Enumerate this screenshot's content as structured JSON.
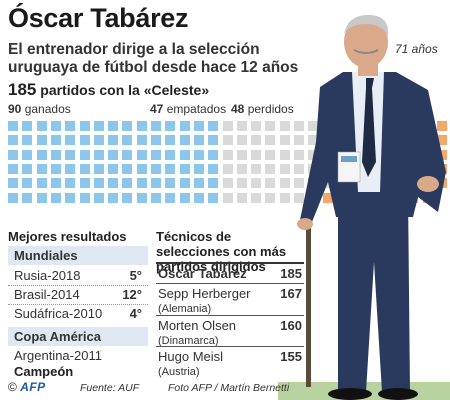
{
  "title": "Óscar Tabárez",
  "subtitle": "El entrenador dirige a la selección uruguaya de fútbol desde hace 12 años",
  "age": "71 años",
  "games": {
    "number": "185",
    "text": " partidos con la «Celeste»"
  },
  "waffle": {
    "won": {
      "count": 90,
      "number": "90",
      "label": " ganados",
      "color": "#8cc6ea"
    },
    "drawn": {
      "count": 47,
      "number": "47",
      "label": " empatados",
      "color": "#d9d9d9"
    },
    "lost": {
      "count": 48,
      "number": "48",
      "label": " perdidos",
      "color": "#f4a66b"
    }
  },
  "best": {
    "heading": "Mejores resultados",
    "mundiales": {
      "heading": "Mundiales",
      "rows": [
        {
          "competition": "Rusia-2018",
          "place": "5°"
        },
        {
          "competition": "Brasil-2014",
          "place": "12°"
        },
        {
          "competition": "Sudáfrica-2010",
          "place": "4°"
        }
      ]
    },
    "copa": {
      "heading": "Copa América",
      "competition": "Argentina-2011",
      "result": "Campeón"
    }
  },
  "coaches": {
    "heading": "Técnicos de selecciones con más partidos dirigidos",
    "rows": [
      {
        "name": "Óscar Tabárez",
        "country": "",
        "matches": "185"
      },
      {
        "name": "Sepp Herberger",
        "country": "(Alemania)",
        "matches": "167"
      },
      {
        "name": "Morten Olsen",
        "country": "(Dinamarca)",
        "matches": "160"
      },
      {
        "name": "Hugo Meisl",
        "country": "(Austria)",
        "matches": "155"
      }
    ]
  },
  "footer": {
    "copyright": "©",
    "agency": "AFP",
    "source": "Fuente: AUF",
    "photo": "Foto AFP / Martín Bernetti"
  },
  "colors": {
    "suit": "#2a3a5e",
    "shirt": "#e8eef5",
    "skin": "#d9a98a",
    "grass": "#b9d3a0",
    "accent": "#1d5aa8"
  }
}
